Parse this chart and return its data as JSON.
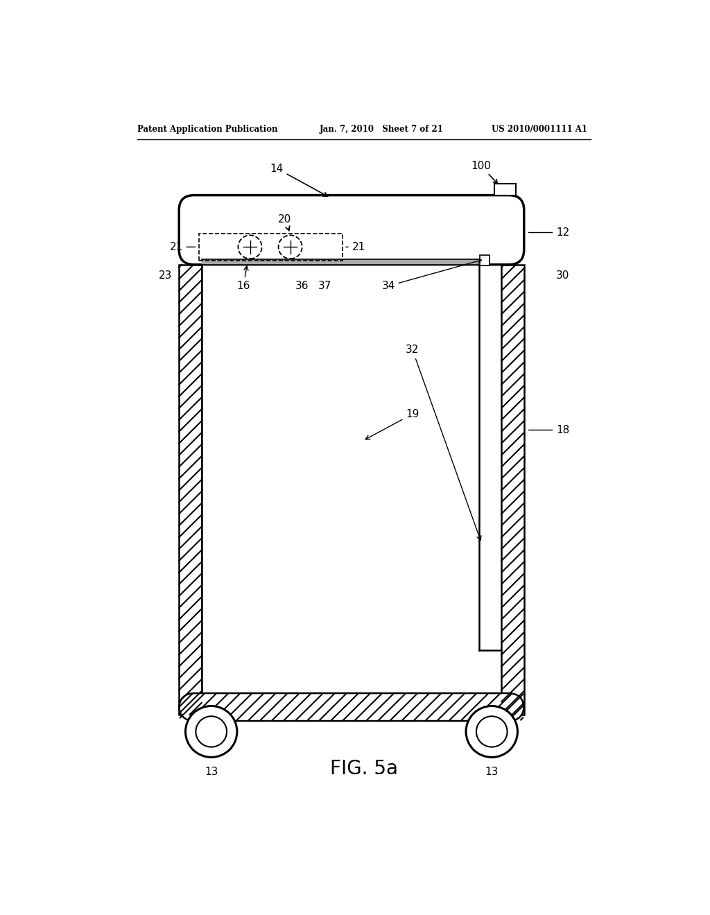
{
  "background_color": "#ffffff",
  "header_left": "Patent Application Publication",
  "header_center": "Jan. 7, 2010   Sheet 7 of 21",
  "header_right": "US 2010/0001111 A1",
  "figure_label": "FIG. 5a",
  "colors": {
    "black": "#000000",
    "white": "#ffffff"
  },
  "lfs": 11
}
